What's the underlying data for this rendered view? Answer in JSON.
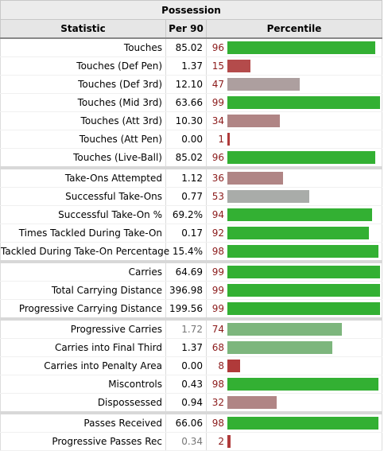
{
  "table": {
    "caption": "Possession",
    "headers": {
      "statistic": "Statistic",
      "per90": "Per 90",
      "percentile": "Percentile"
    },
    "colors": {
      "high": "#33b033",
      "mid": "#a9a9a9",
      "low_mid": "#b07d7d",
      "low": "#b03a3a",
      "soft_high": "#7fb77f",
      "soft_mid": "#7fb07f",
      "pct_text": "#8b1a1a"
    },
    "rows": [
      {
        "stat": "Touches",
        "per90": "85.02",
        "pct": "96",
        "pct_value": 96,
        "color": "#33b033",
        "group_start": false,
        "dim": false
      },
      {
        "stat": "Touches (Def Pen)",
        "per90": "1.37",
        "pct": "15",
        "pct_value": 15,
        "color": "#b44b4b",
        "group_start": false,
        "dim": false
      },
      {
        "stat": "Touches (Def 3rd)",
        "per90": "12.10",
        "pct": "47",
        "pct_value": 47,
        "color": "#ad9f9f",
        "group_start": false,
        "dim": false
      },
      {
        "stat": "Touches (Mid 3rd)",
        "per90": "63.66",
        "pct": "99",
        "pct_value": 99,
        "color": "#33b033",
        "group_start": false,
        "dim": false
      },
      {
        "stat": "Touches (Att 3rd)",
        "per90": "10.30",
        "pct": "34",
        "pct_value": 34,
        "color": "#b08585",
        "group_start": false,
        "dim": false
      },
      {
        "stat": "Touches (Att Pen)",
        "per90": "0.00",
        "pct": "1",
        "pct_value": 1,
        "color": "#b03a3a",
        "group_start": false,
        "dim": false
      },
      {
        "stat": "Touches (Live-Ball)",
        "per90": "85.02",
        "pct": "96",
        "pct_value": 96,
        "color": "#33b033",
        "group_start": false,
        "dim": false
      },
      {
        "stat": "Take-Ons Attempted",
        "per90": "1.12",
        "pct": "36",
        "pct_value": 36,
        "color": "#b08585",
        "group_start": true,
        "dim": false
      },
      {
        "stat": "Successful Take-Ons",
        "per90": "0.77",
        "pct": "53",
        "pct_value": 53,
        "color": "#a9aca9",
        "group_start": false,
        "dim": false
      },
      {
        "stat": "Successful Take-On %",
        "per90": "69.2%",
        "pct": "94",
        "pct_value": 94,
        "color": "#33b033",
        "group_start": false,
        "dim": false
      },
      {
        "stat": "Times Tackled During Take-On",
        "per90": "0.17",
        "pct": "92",
        "pct_value": 92,
        "color": "#33b033",
        "group_start": false,
        "dim": false
      },
      {
        "stat": "Tackled During Take-On Percentage",
        "per90": "15.4%",
        "pct": "98",
        "pct_value": 98,
        "color": "#33b033",
        "group_start": false,
        "dim": false
      },
      {
        "stat": "Carries",
        "per90": "64.69",
        "pct": "99",
        "pct_value": 99,
        "color": "#33b033",
        "group_start": true,
        "dim": false
      },
      {
        "stat": "Total Carrying Distance",
        "per90": "396.98",
        "pct": "99",
        "pct_value": 99,
        "color": "#33b033",
        "group_start": false,
        "dim": false
      },
      {
        "stat": "Progressive Carrying Distance",
        "per90": "199.56",
        "pct": "99",
        "pct_value": 99,
        "color": "#33b033",
        "group_start": false,
        "dim": false
      },
      {
        "stat": "Progressive Carries",
        "per90": "1.72",
        "pct": "74",
        "pct_value": 74,
        "color": "#7db67d",
        "group_start": true,
        "dim": true
      },
      {
        "stat": "Carries into Final Third",
        "per90": "1.37",
        "pct": "68",
        "pct_value": 68,
        "color": "#7db67d",
        "group_start": false,
        "dim": false
      },
      {
        "stat": "Carries into Penalty Area",
        "per90": "0.00",
        "pct": "8",
        "pct_value": 8,
        "color": "#b03a3a",
        "group_start": false,
        "dim": false
      },
      {
        "stat": "Miscontrols",
        "per90": "0.43",
        "pct": "98",
        "pct_value": 98,
        "color": "#33b033",
        "group_start": false,
        "dim": false
      },
      {
        "stat": "Dispossessed",
        "per90": "0.94",
        "pct": "32",
        "pct_value": 32,
        "color": "#b08585",
        "group_start": false,
        "dim": false
      },
      {
        "stat": "Passes Received",
        "per90": "66.06",
        "pct": "98",
        "pct_value": 98,
        "color": "#33b033",
        "group_start": true,
        "dim": false
      },
      {
        "stat": "Progressive Passes Rec",
        "per90": "0.34",
        "pct": "2",
        "pct_value": 2,
        "color": "#b03a3a",
        "group_start": false,
        "dim": true
      }
    ]
  }
}
